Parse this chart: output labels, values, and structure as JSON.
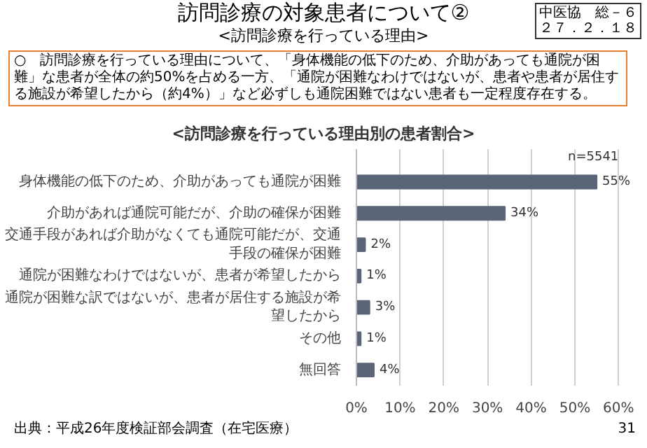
{
  "chart_data": {
    "type": "bar",
    "orientation": "horizontal",
    "title": "訪問診療の対象患者について②",
    "subtitle": "<訪問診療を行っている理由>",
    "annotations": [
      "○　訪問診療を行っている理由について、「身体機能の低下のため、介助があっても通院が困難」な患者が全体の約50%を占める一方、「通院が困難なわけではないが、患者や患者が居住する施設が希望したから（約4%）」など必ずしも通院困難ではない患者も一定程度存在する。",
      "<訪問診療を行っている理由別の患者割合>",
      "n=5541",
      "出典：平成26年度検証部会調査（在宅医療）",
      "中医協　総－６",
      "２７．２．１８",
      "31"
    ],
    "categories": [
      "身体機能の低下のため、介助があっても通院が困難",
      "介助があれば通院可能だが、介助の確保が困難",
      "交通手段があれば介助がなくても通院可能だが、交通手段の確保が困難",
      "通院が困難なわけではないが、患者が希望したから",
      "通院が困難な訳ではないが、患者が居住する施設が希望したから",
      "その他",
      "無回答"
    ],
    "values": [
      55,
      34,
      2,
      1,
      3,
      1,
      4
    ],
    "value_labels": [
      "55%",
      "34%",
      "2%",
      "1%",
      "3%",
      "1%",
      "4%"
    ],
    "color": "#5b6579",
    "xlim": [
      0,
      60
    ],
    "xticks": [
      {
        "value": 0,
        "label": "0%"
      },
      {
        "value": 10,
        "label": "10%"
      },
      {
        "value": 20,
        "label": "20%"
      },
      {
        "value": 30,
        "label": "30%"
      },
      {
        "value": 40,
        "label": "40%"
      },
      {
        "value": 50,
        "label": "50%"
      },
      {
        "value": 60,
        "label": "60%"
      }
    ],
    "grid": "x"
  }
}
